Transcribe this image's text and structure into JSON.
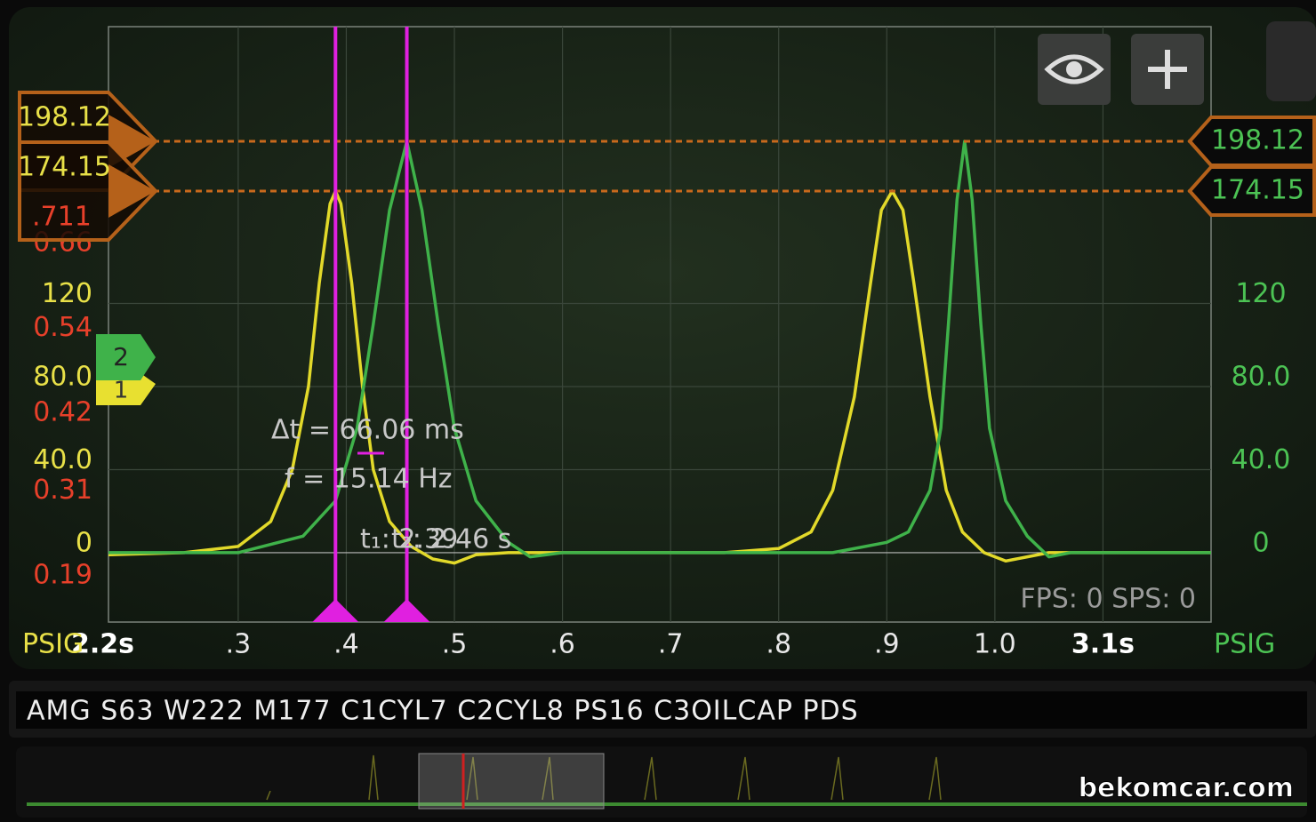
{
  "scope": {
    "type": "line",
    "xlim": [
      0.18,
      1.2
    ],
    "xticks": [
      {
        "value": 0.3,
        "label": ".3"
      },
      {
        "value": 0.4,
        "label": ".4"
      },
      {
        "value": 0.5,
        "label": ".5"
      },
      {
        "value": 0.6,
        "label": ".6"
      },
      {
        "value": 0.7,
        "label": ".7"
      },
      {
        "value": 0.8,
        "label": ".8"
      },
      {
        "value": 0.9,
        "label": ".9"
      },
      {
        "value": 1,
        "label": "1.0"
      },
      {
        "value": 1.1,
        "label": "3.1s"
      }
    ],
    "x_start_label": "2.2s",
    "ylim": [
      -33.4,
      253.3
    ],
    "yticks": [
      0,
      {
        "value": 40,
        "label": "40.0"
      },
      {
        "value": 80,
        "label": "80.0"
      },
      120
    ],
    "y2lim": [
      0.137,
      0.979
    ],
    "y2ticks": [
      0.19,
      0.31,
      0.42,
      0.54,
      0.66
    ],
    "left_unit": "PSIG",
    "right_unit": "PSIG",
    "grid": true,
    "series": [
      {
        "color": "#e2d92a",
        "x": [
          0.18,
          0.25,
          0.3,
          0.33,
          0.35,
          0.365,
          0.375,
          0.385,
          0.39,
          0.395,
          0.405,
          0.415,
          0.425,
          0.44,
          0.46,
          0.48,
          0.5,
          0.52,
          0.55,
          0.75,
          0.8,
          0.83,
          0.85,
          0.87,
          0.885,
          0.895,
          0.905,
          0.915,
          0.925,
          0.94,
          0.955,
          0.97,
          0.99,
          1.01,
          1.03,
          1.05,
          1.2
        ],
        "values": [
          -1,
          0,
          3,
          15,
          40,
          80,
          130,
          168,
          174.15,
          168,
          130,
          80,
          40,
          15,
          3,
          -3,
          -5,
          -1,
          0,
          0,
          2,
          10,
          30,
          75,
          130,
          165,
          174.15,
          165,
          130,
          75,
          30,
          10,
          0,
          -4,
          -2,
          0,
          0
        ]
      },
      {
        "color": "#3fb24a",
        "x": [
          0.18,
          0.3,
          0.36,
          0.39,
          0.41,
          0.425,
          0.44,
          0.456,
          0.47,
          0.485,
          0.5,
          0.52,
          0.55,
          0.57,
          0.6,
          0.85,
          0.9,
          0.92,
          0.94,
          0.95,
          0.957,
          0.965,
          0.972,
          0.979,
          0.987,
          0.995,
          1.01,
          1.03,
          1.05,
          1.07,
          1.2
        ],
        "values": [
          0,
          0,
          8,
          25,
          60,
          110,
          165,
          198.12,
          165,
          110,
          60,
          25,
          5,
          -2,
          0,
          0,
          5,
          10,
          30,
          60,
          110,
          170,
          198.12,
          170,
          110,
          60,
          25,
          8,
          -2,
          0,
          0
        ]
      }
    ],
    "levels": [
      198.12,
      174.15
    ],
    "red_level_label": ".711",
    "cursor_x": [
      0.39,
      0.456
    ],
    "delta_t": "Δt = 66.06 ms",
    "frequency": "f = 15.14 Hz",
    "t1": "t₁: 2.39",
    "t2": "t₂: 2.46 s",
    "channels": [
      "1",
      "2"
    ],
    "stats": "FPS: 0  SPS: 0"
  },
  "title_bar": "AMG S63 W222 M177 C1CYL7 C2CYL8 PS16 C3OILCAP PDS",
  "watermark": "bekomcar.com"
}
